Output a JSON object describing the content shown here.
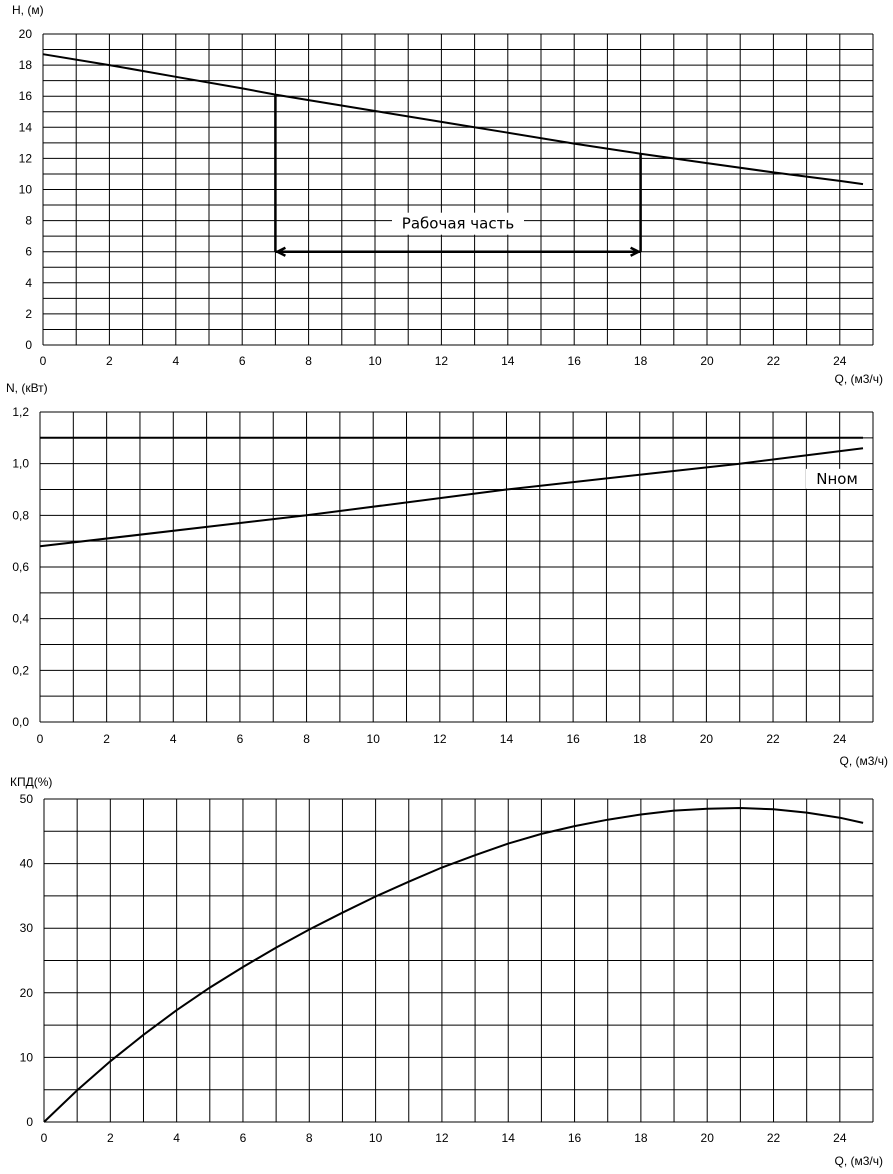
{
  "chart_data": [
    {
      "type": "line",
      "ylabel": "H, (м)",
      "xlabel": "Q, (м3/ч)",
      "xlim": [
        0,
        25
      ],
      "ylim": [
        0,
        20
      ],
      "x_ticks": [
        "0",
        "2",
        "4",
        "6",
        "8",
        "10",
        "12",
        "14",
        "16",
        "18",
        "20",
        "22",
        "24"
      ],
      "y_ticks": [
        "0",
        "2",
        "4",
        "6",
        "8",
        "10",
        "12",
        "14",
        "16",
        "18",
        "20"
      ],
      "grid": true,
      "series": [
        {
          "x": [
            0,
            2,
            4,
            6,
            7,
            8,
            10,
            12,
            14,
            16,
            18,
            20,
            22,
            24,
            24.7
          ],
          "y": [
            18.7,
            18.0,
            17.25,
            16.5,
            16.1,
            15.75,
            15.05,
            14.35,
            13.65,
            12.95,
            12.3,
            11.7,
            11.1,
            10.55,
            10.35
          ]
        }
      ],
      "annotation": {
        "text": "Рабочая часть",
        "q_start": 7,
        "q_end": 18,
        "h_level": 6
      }
    },
    {
      "type": "line",
      "ylabel": "N, (кВт)",
      "xlabel": "Q, (м3/ч)",
      "xlim": [
        0,
        25
      ],
      "ylim": [
        0,
        1.2
      ],
      "x_ticks": [
        "0",
        "2",
        "4",
        "6",
        "8",
        "10",
        "12",
        "14",
        "16",
        "18",
        "20",
        "22",
        "24"
      ],
      "y_ticks": [
        "0,0",
        "0,2",
        "0,4",
        "0,6",
        "0,8",
        "1,0",
        "1,2"
      ],
      "grid": true,
      "series": [
        {
          "x": [
            0,
            24.7
          ],
          "y": [
            1.1,
            1.1
          ],
          "name": "Nном"
        },
        {
          "x": [
            0,
            8,
            14,
            21,
            24.7
          ],
          "y": [
            0.68,
            0.8,
            0.9,
            1.0,
            1.06
          ]
        }
      ]
    },
    {
      "type": "line",
      "ylabel": "КПД(%)",
      "xlabel": "Q, (м3/ч)",
      "xlim": [
        0,
        25
      ],
      "ylim": [
        0,
        50
      ],
      "x_ticks": [
        "0",
        "2",
        "4",
        "6",
        "8",
        "10",
        "12",
        "14",
        "16",
        "18",
        "20",
        "22",
        "24"
      ],
      "y_ticks": [
        "0",
        "10",
        "20",
        "30",
        "40",
        "50"
      ],
      "grid": true,
      "series": [
        {
          "x": [
            0,
            1,
            2,
            3,
            4,
            5,
            6,
            7,
            8,
            9,
            10,
            11,
            12,
            13,
            14,
            15,
            16,
            17,
            18,
            19,
            20,
            21,
            22,
            23,
            24,
            24.7
          ],
          "y": [
            0,
            4.9,
            9.4,
            13.5,
            17.3,
            20.8,
            24.0,
            27.0,
            29.8,
            32.4,
            34.9,
            37.2,
            39.4,
            41.3,
            43.1,
            44.6,
            45.8,
            46.8,
            47.6,
            48.2,
            48.5,
            48.6,
            48.4,
            47.9,
            47.1,
            46.3
          ]
        }
      ]
    }
  ]
}
